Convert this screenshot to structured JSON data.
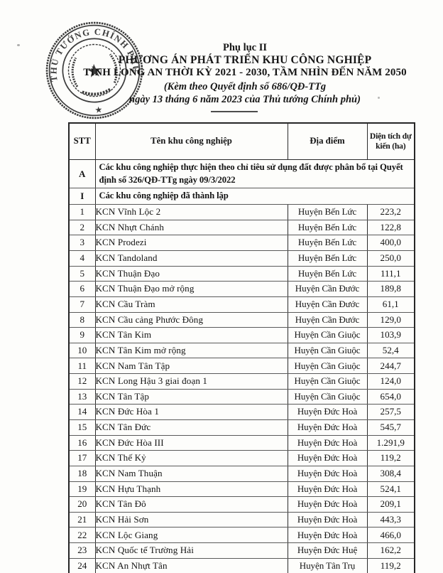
{
  "document": {
    "appendix": "Phụ lục II",
    "title_line1": "PHƯƠNG ÁN PHÁT TRIỂN KHU CÔNG NGHIỆP",
    "title_line2": "TỈNH LONG AN THỜI KỲ 2021 - 2030, TẦM NHÌN ĐẾN NĂM 2050",
    "subtitle_line1": "(Kèm theo Quyết định số 686/QĐ-TTg",
    "subtitle_line2": "ngày 13 tháng 6  năm 2023 của Thủ tướng Chính phủ)",
    "stamp": {
      "ring_text": "THỦ TƯỚNG CHÍNH PHỦ",
      "star_glyph": "★",
      "emblem_star_glyph": "★",
      "ink_color": "#1b1b1b"
    }
  },
  "table": {
    "headers": [
      "STT",
      "Tên khu công nghiệp",
      "Địa điểm",
      "Diện tích dự kiến (ha)"
    ],
    "sections": [
      {
        "id": "A",
        "label": "Các khu công nghiệp thực hiện theo chỉ tiêu sử dụng đất được phân bổ tại Quyết định số 326/QĐ-TTg ngày 09/3/2022"
      },
      {
        "id": "I",
        "label": "Các khu công nghiệp đã thành lập"
      }
    ],
    "rows": [
      {
        "stt": "1",
        "name": "KCN Vĩnh Lộc 2",
        "location": "Huyện Bến Lức",
        "area": "223,2"
      },
      {
        "stt": "2",
        "name": "KCN Nhựt Chánh",
        "location": "Huyện Bến Lức",
        "area": "122,8"
      },
      {
        "stt": "3",
        "name": "KCN Prodezi",
        "location": "Huyện Bến Lức",
        "area": "400,0"
      },
      {
        "stt": "4",
        "name": "KCN Tandoland",
        "location": "Huyện Bến Lức",
        "area": "250,0"
      },
      {
        "stt": "5",
        "name": "KCN Thuận Đạo",
        "location": "Huyện Bến Lức",
        "area": "111,1"
      },
      {
        "stt": "6",
        "name": "KCN Thuận Đạo mở rộng",
        "location": "Huyện Cần Đước",
        "area": "189,8"
      },
      {
        "stt": "7",
        "name": "KCN Cầu Tràm",
        "location": "Huyện Cần Đước",
        "area": "61,1"
      },
      {
        "stt": "8",
        "name": "KCN Cầu cảng Phước Đông",
        "location": "Huyện Cần Đước",
        "area": "129,0"
      },
      {
        "stt": "9",
        "name": "KCN Tân Kim",
        "location": "Huyện Cần Giuộc",
        "area": "103,9"
      },
      {
        "stt": "10",
        "name": "KCN Tân Kim mở rộng",
        "location": "Huyện Cần Giuộc",
        "area": "52,4"
      },
      {
        "stt": "11",
        "name": "KCN Nam Tân Tập",
        "location": "Huyện Cần Giuộc",
        "area": "244,7"
      },
      {
        "stt": "12",
        "name": "KCN Long Hậu 3 giai đoạn 1",
        "location": "Huyện Cần Giuộc",
        "area": "124,0"
      },
      {
        "stt": "13",
        "name": "KCN Tân Tập",
        "location": "Huyện Cần Giuộc",
        "area": "654,0"
      },
      {
        "stt": "14",
        "name": "KCN Đức Hòa 1",
        "location": "Huyện Đức Hoà",
        "area": "257,5"
      },
      {
        "stt": "15",
        "name": "KCN Tân Đức",
        "location": "Huyện Đức Hoà",
        "area": "545,7"
      },
      {
        "stt": "16",
        "name": "KCN Đức Hòa III",
        "location": "Huyện Đức Hoà",
        "area": "1.291,9"
      },
      {
        "stt": "17",
        "name": "KCN Thế Kỷ",
        "location": "Huyện Đức Hoà",
        "area": "119,2"
      },
      {
        "stt": "18",
        "name": "KCN Nam Thuận",
        "location": "Huyện Đức Hoà",
        "area": "308,4"
      },
      {
        "stt": "19",
        "name": "KCN Hựu Thạnh",
        "location": "Huyện Đức Hoà",
        "area": "524,1"
      },
      {
        "stt": "20",
        "name": "KCN Tân Đô",
        "location": "Huyện Đức Hoà",
        "area": "209,1"
      },
      {
        "stt": "21",
        "name": "KCN Hải Sơn",
        "location": "Huyện Đức Hoà",
        "area": "443,3"
      },
      {
        "stt": "22",
        "name": "KCN Lộc Giang",
        "location": "Huyện Đức Hoà",
        "area": "466,0"
      },
      {
        "stt": "23",
        "name": "KCN Quốc tế Trường Hải",
        "location": "Huyện Đức Huệ",
        "area": "162,2"
      },
      {
        "stt": "24",
        "name": "KCN An Nhựt Tân",
        "location": "Huyện Tân Trụ",
        "area": "119,2"
      }
    ]
  }
}
